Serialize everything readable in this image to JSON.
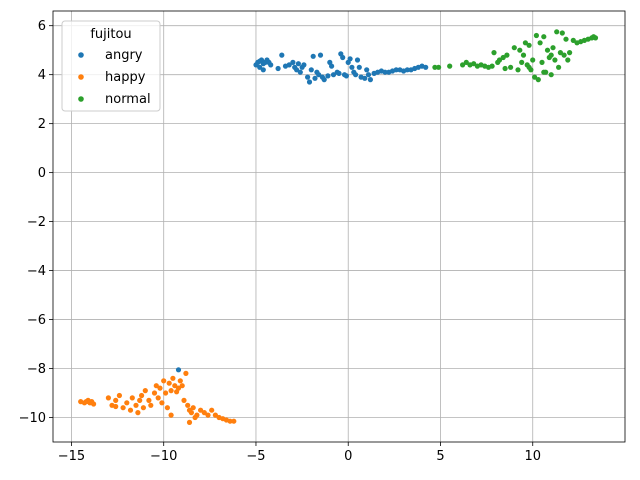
{
  "chart_data": {
    "type": "scatter",
    "title": "",
    "xlabel": "",
    "ylabel": "",
    "xlim": [
      -16,
      15
    ],
    "ylim": [
      -11,
      6.6
    ],
    "xticks": [
      -15,
      -10,
      -5,
      0,
      5,
      10
    ],
    "yticks": [
      -10,
      -8,
      -6,
      -4,
      -2,
      0,
      2,
      4,
      6
    ],
    "xtick_labels": [
      "−15",
      "−10",
      "−5",
      "0",
      "5",
      "10"
    ],
    "ytick_labels": [
      "−10",
      "−8",
      "−6",
      "−4",
      "−2",
      "0",
      "2",
      "4",
      "6"
    ],
    "grid": true,
    "legend": {
      "title": "fujitou",
      "placement": "top-left"
    },
    "series": [
      {
        "name": "angry",
        "color": "#1f77b4",
        "points": [
          [
            -5.0,
            4.4
          ],
          [
            -4.9,
            4.5
          ],
          [
            -4.8,
            4.55
          ],
          [
            -4.7,
            4.6
          ],
          [
            -4.6,
            4.45
          ],
          [
            -4.5,
            4.5
          ],
          [
            -4.4,
            4.6
          ],
          [
            -4.3,
            4.5
          ],
          [
            -4.2,
            4.4
          ],
          [
            -4.8,
            4.3
          ],
          [
            -4.6,
            4.2
          ],
          [
            -3.8,
            4.25
          ],
          [
            -3.6,
            4.8
          ],
          [
            -3.4,
            4.35
          ],
          [
            -3.2,
            4.4
          ],
          [
            -3.0,
            4.5
          ],
          [
            -2.9,
            4.3
          ],
          [
            -2.8,
            4.2
          ],
          [
            -2.7,
            4.45
          ],
          [
            -2.6,
            4.1
          ],
          [
            -2.5,
            4.3
          ],
          [
            -2.4,
            4.4
          ],
          [
            -2.2,
            3.9
          ],
          [
            -2.1,
            3.7
          ],
          [
            -2.0,
            4.2
          ],
          [
            -1.9,
            4.75
          ],
          [
            -1.8,
            3.85
          ],
          [
            -1.7,
            4.1
          ],
          [
            -1.6,
            4.0
          ],
          [
            -1.5,
            4.8
          ],
          [
            -1.4,
            3.9
          ],
          [
            -1.3,
            3.8
          ],
          [
            -1.1,
            3.95
          ],
          [
            -1.0,
            4.5
          ],
          [
            -0.9,
            4.35
          ],
          [
            -0.8,
            4.0
          ],
          [
            -0.6,
            4.1
          ],
          [
            -0.5,
            4.05
          ],
          [
            -0.4,
            4.85
          ],
          [
            -0.3,
            4.7
          ],
          [
            -0.2,
            4.0
          ],
          [
            -0.1,
            3.95
          ],
          [
            0.0,
            4.5
          ],
          [
            0.1,
            4.65
          ],
          [
            0.2,
            4.3
          ],
          [
            0.3,
            4.1
          ],
          [
            0.4,
            4.0
          ],
          [
            0.5,
            4.6
          ],
          [
            0.6,
            4.3
          ],
          [
            0.7,
            3.9
          ],
          [
            0.9,
            3.85
          ],
          [
            1.0,
            4.2
          ],
          [
            1.1,
            4.0
          ],
          [
            1.2,
            3.8
          ],
          [
            1.4,
            4.05
          ],
          [
            1.6,
            4.1
          ],
          [
            1.8,
            4.15
          ],
          [
            2.0,
            4.1
          ],
          [
            2.2,
            4.1
          ],
          [
            2.4,
            4.15
          ],
          [
            2.6,
            4.2
          ],
          [
            2.8,
            4.2
          ],
          [
            3.0,
            4.15
          ],
          [
            3.2,
            4.2
          ],
          [
            3.4,
            4.2
          ],
          [
            3.6,
            4.25
          ],
          [
            3.8,
            4.3
          ],
          [
            4.0,
            4.35
          ],
          [
            4.2,
            4.3
          ],
          [
            -9.2,
            -8.05
          ]
        ]
      },
      {
        "name": "happy",
        "color": "#ff7f0e",
        "points": [
          [
            -14.5,
            -9.35
          ],
          [
            -14.3,
            -9.4
          ],
          [
            -14.2,
            -9.35
          ],
          [
            -14.1,
            -9.3
          ],
          [
            -14.0,
            -9.4
          ],
          [
            -13.9,
            -9.35
          ],
          [
            -13.8,
            -9.45
          ],
          [
            -13.0,
            -9.2
          ],
          [
            -12.8,
            -9.5
          ],
          [
            -12.6,
            -9.3
          ],
          [
            -12.4,
            -9.1
          ],
          [
            -12.2,
            -9.6
          ],
          [
            -12.0,
            -9.4
          ],
          [
            -11.8,
            -9.7
          ],
          [
            -11.7,
            -9.2
          ],
          [
            -11.5,
            -9.5
          ],
          [
            -11.4,
            -9.8
          ],
          [
            -11.3,
            -9.3
          ],
          [
            -11.2,
            -9.1
          ],
          [
            -11.1,
            -9.6
          ],
          [
            -11.0,
            -8.9
          ],
          [
            -10.8,
            -9.3
          ],
          [
            -10.7,
            -9.5
          ],
          [
            -10.5,
            -9.0
          ],
          [
            -10.4,
            -8.7
          ],
          [
            -10.3,
            -9.2
          ],
          [
            -10.2,
            -8.8
          ],
          [
            -10.1,
            -9.4
          ],
          [
            -10.0,
            -8.5
          ],
          [
            -9.9,
            -9.0
          ],
          [
            -9.8,
            -9.6
          ],
          [
            -9.7,
            -8.6
          ],
          [
            -9.6,
            -8.9
          ],
          [
            -9.5,
            -8.4
          ],
          [
            -9.4,
            -8.7
          ],
          [
            -9.3,
            -8.95
          ],
          [
            -9.2,
            -8.8
          ],
          [
            -9.1,
            -8.5
          ],
          [
            -9.0,
            -8.7
          ],
          [
            -8.9,
            -9.3
          ],
          [
            -8.8,
            -8.2
          ],
          [
            -8.7,
            -9.5
          ],
          [
            -8.6,
            -9.7
          ],
          [
            -8.5,
            -9.8
          ],
          [
            -8.4,
            -9.6
          ],
          [
            -8.3,
            -10.0
          ],
          [
            -8.2,
            -9.9
          ],
          [
            -8.0,
            -9.7
          ],
          [
            -7.8,
            -9.8
          ],
          [
            -7.6,
            -9.9
          ],
          [
            -7.4,
            -9.7
          ],
          [
            -7.2,
            -9.9
          ],
          [
            -7.0,
            -10.0
          ],
          [
            -6.8,
            -10.05
          ],
          [
            -6.6,
            -10.1
          ],
          [
            -6.4,
            -10.15
          ],
          [
            -6.2,
            -10.15
          ],
          [
            -8.6,
            -10.2
          ],
          [
            -9.6,
            -9.9
          ],
          [
            -12.6,
            -9.55
          ]
        ]
      },
      {
        "name": "normal",
        "color": "#2ca02c",
        "points": [
          [
            4.7,
            4.3
          ],
          [
            4.9,
            4.3
          ],
          [
            5.5,
            4.35
          ],
          [
            6.2,
            4.4
          ],
          [
            6.4,
            4.5
          ],
          [
            6.6,
            4.4
          ],
          [
            6.8,
            4.45
          ],
          [
            7.0,
            4.35
          ],
          [
            7.2,
            4.4
          ],
          [
            7.4,
            4.35
          ],
          [
            7.6,
            4.3
          ],
          [
            7.8,
            4.35
          ],
          [
            7.9,
            4.9
          ],
          [
            8.1,
            4.5
          ],
          [
            8.2,
            4.6
          ],
          [
            8.4,
            4.7
          ],
          [
            8.5,
            4.25
          ],
          [
            8.6,
            4.8
          ],
          [
            8.8,
            4.3
          ],
          [
            9.0,
            5.1
          ],
          [
            9.2,
            4.2
          ],
          [
            9.3,
            5.0
          ],
          [
            9.4,
            4.5
          ],
          [
            9.5,
            4.8
          ],
          [
            9.6,
            5.3
          ],
          [
            9.7,
            4.4
          ],
          [
            9.8,
            5.2
          ],
          [
            9.9,
            4.2
          ],
          [
            10.0,
            4.6
          ],
          [
            10.1,
            3.9
          ],
          [
            10.2,
            5.6
          ],
          [
            10.3,
            3.8
          ],
          [
            10.4,
            5.3
          ],
          [
            10.5,
            4.5
          ],
          [
            10.6,
            5.55
          ],
          [
            10.7,
            4.1
          ],
          [
            10.8,
            5.0
          ],
          [
            10.9,
            4.7
          ],
          [
            11.0,
            4.8
          ],
          [
            11.1,
            5.1
          ],
          [
            11.2,
            4.6
          ],
          [
            11.3,
            5.75
          ],
          [
            11.4,
            4.3
          ],
          [
            11.5,
            4.9
          ],
          [
            11.6,
            5.7
          ],
          [
            11.7,
            4.8
          ],
          [
            11.8,
            5.45
          ],
          [
            11.9,
            4.6
          ],
          [
            12.0,
            4.9
          ],
          [
            12.2,
            5.4
          ],
          [
            12.4,
            5.3
          ],
          [
            12.6,
            5.35
          ],
          [
            12.8,
            5.4
          ],
          [
            13.0,
            5.45
          ],
          [
            13.2,
            5.5
          ],
          [
            13.3,
            5.55
          ],
          [
            13.4,
            5.5
          ],
          [
            10.6,
            4.1
          ],
          [
            11.0,
            4.0
          ],
          [
            9.8,
            4.3
          ]
        ]
      }
    ]
  }
}
